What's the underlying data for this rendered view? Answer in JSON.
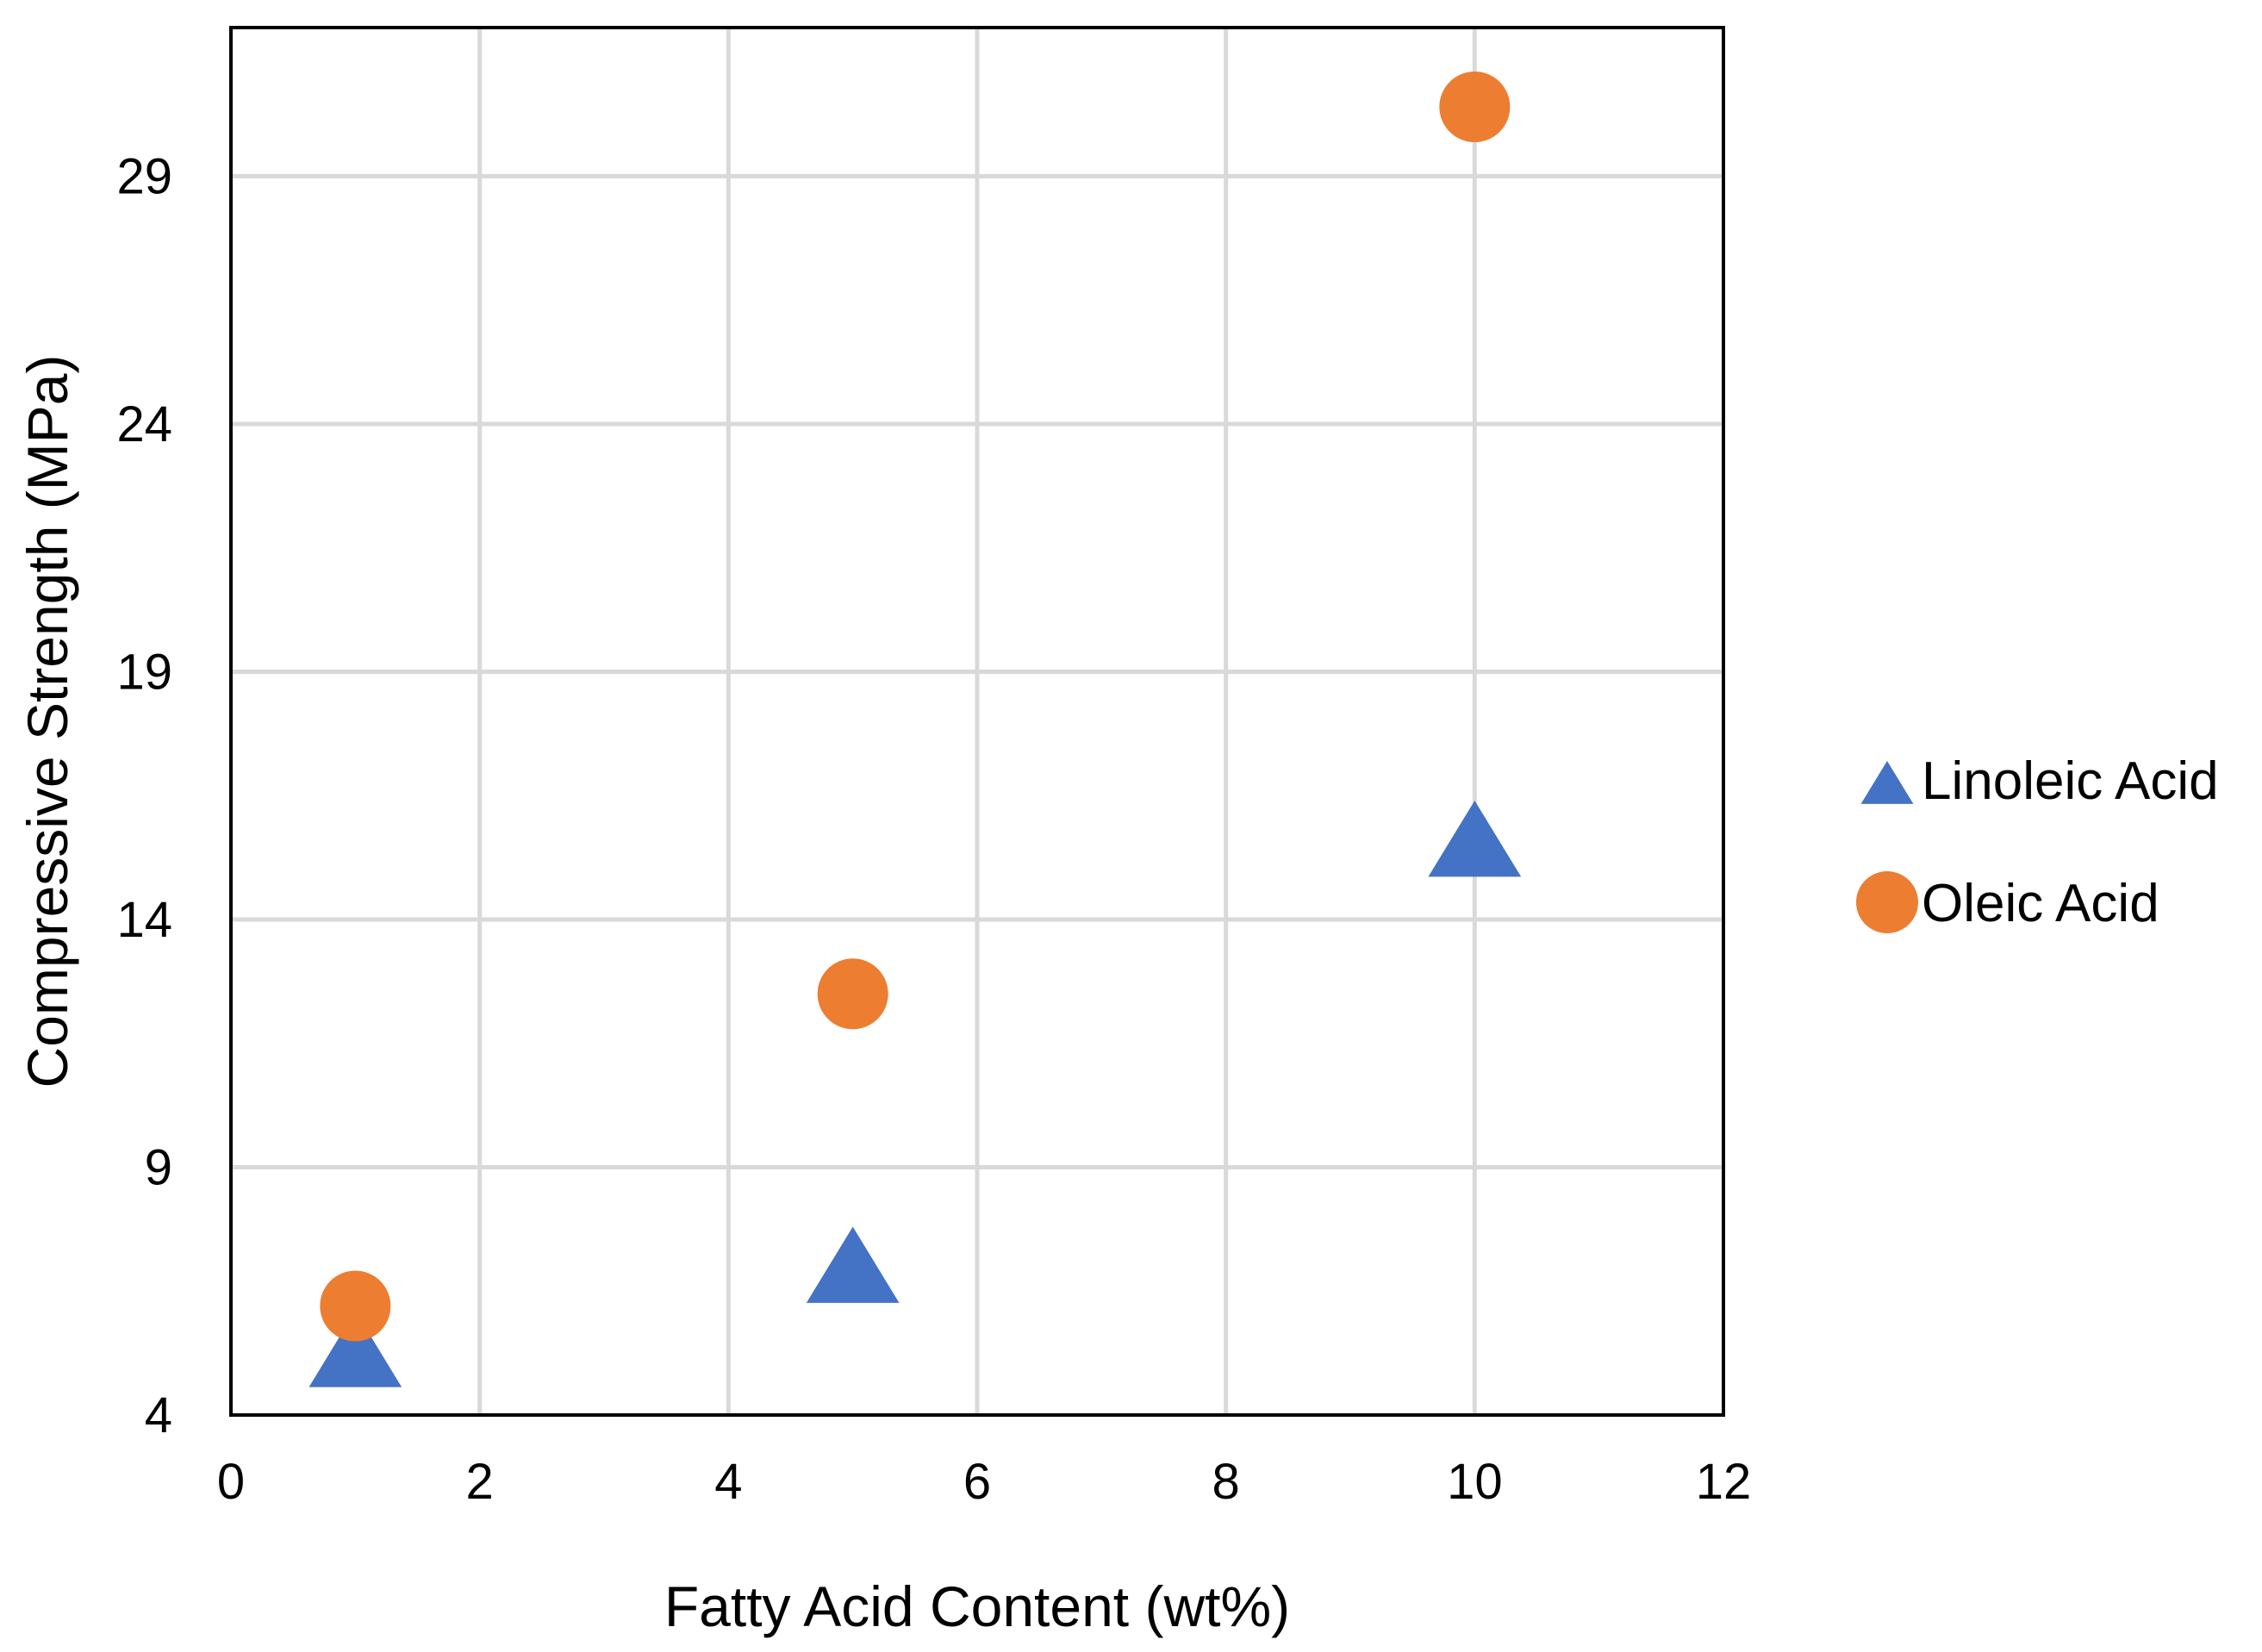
{
  "chart_data": {
    "type": "scatter",
    "xlabel": "Fatty Acid Content (wt%)",
    "ylabel": "Compressive Strength (MPa)",
    "xlim": [
      0,
      12
    ],
    "ylim": [
      4,
      32
    ],
    "x_ticks": [
      0,
      2,
      4,
      6,
      8,
      10,
      12
    ],
    "y_ticks": [
      4,
      9,
      14,
      19,
      24,
      29
    ],
    "x_tick_labels": [
      "0",
      "2",
      "4",
      "6",
      "8",
      "10",
      "12"
    ],
    "y_tick_labels": [
      "4",
      "9",
      "14",
      "19",
      "24",
      "29"
    ],
    "grid": true,
    "legend_position": "right",
    "series": [
      {
        "name": "Linoleic Acid",
        "marker": "triangle",
        "color": "#4472C4",
        "points": [
          {
            "x": 1,
            "y": 5.3
          },
          {
            "x": 5,
            "y": 7.0
          },
          {
            "x": 10,
            "y": 15.6
          }
        ]
      },
      {
        "name": "Oleic Acid",
        "marker": "circle",
        "color": "#ED7D31",
        "points": [
          {
            "x": 1,
            "y": 6.2
          },
          {
            "x": 5,
            "y": 12.5
          },
          {
            "x": 10,
            "y": 30.4
          }
        ]
      }
    ]
  }
}
